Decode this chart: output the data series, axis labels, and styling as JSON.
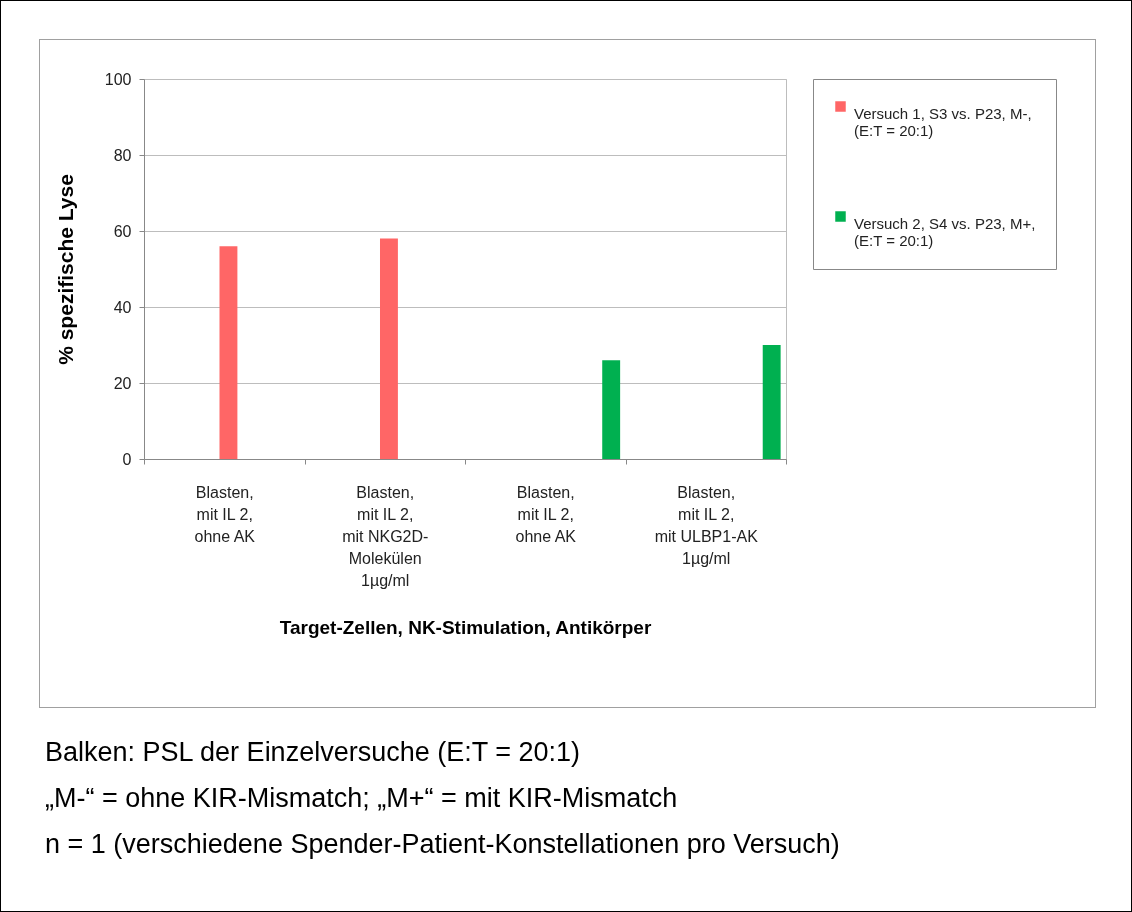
{
  "chart_data": {
    "type": "bar",
    "xlabel": "Target-Zellen, NK-Stimulation, Antikörper",
    "ylabel": "% spezifische Lyse",
    "categories": [
      "Blasten,\nmit IL 2,\nohne AK",
      "Blasten,\nmit IL 2,\nmit NKG2D-\nMolekülen\n1µg/ml",
      "Blasten,\nmit IL 2,\nohne AK",
      "Blasten,\nmit IL 2,\nmit ULBP1-AK\n1µg/ml"
    ],
    "series": [
      {
        "name": "Versuch 1, S3 vs. P23, M-, (E:T = 20:1)",
        "color": "#ff6666",
        "values": [
          56,
          58,
          null,
          null
        ]
      },
      {
        "name": "Versuch 2, S4 vs. P23, M+, (E:T = 20:1)",
        "color": "#00b050",
        "values": [
          null,
          null,
          26,
          30
        ]
      }
    ],
    "ylim": [
      0,
      100
    ],
    "yticks": [
      0,
      20,
      40,
      60,
      80,
      100
    ],
    "grid": "y",
    "legend": "right",
    "annotations": [
      "Balken: PSL der Einzelversuche (E:T = 20:1)",
      "„M-“ = ohne KIR-Mismatch; „M+“ = mit KIR-Mismatch",
      "n = 1 (verschiedene Spender-Patient-Konstellationen pro Versuch)"
    ]
  }
}
